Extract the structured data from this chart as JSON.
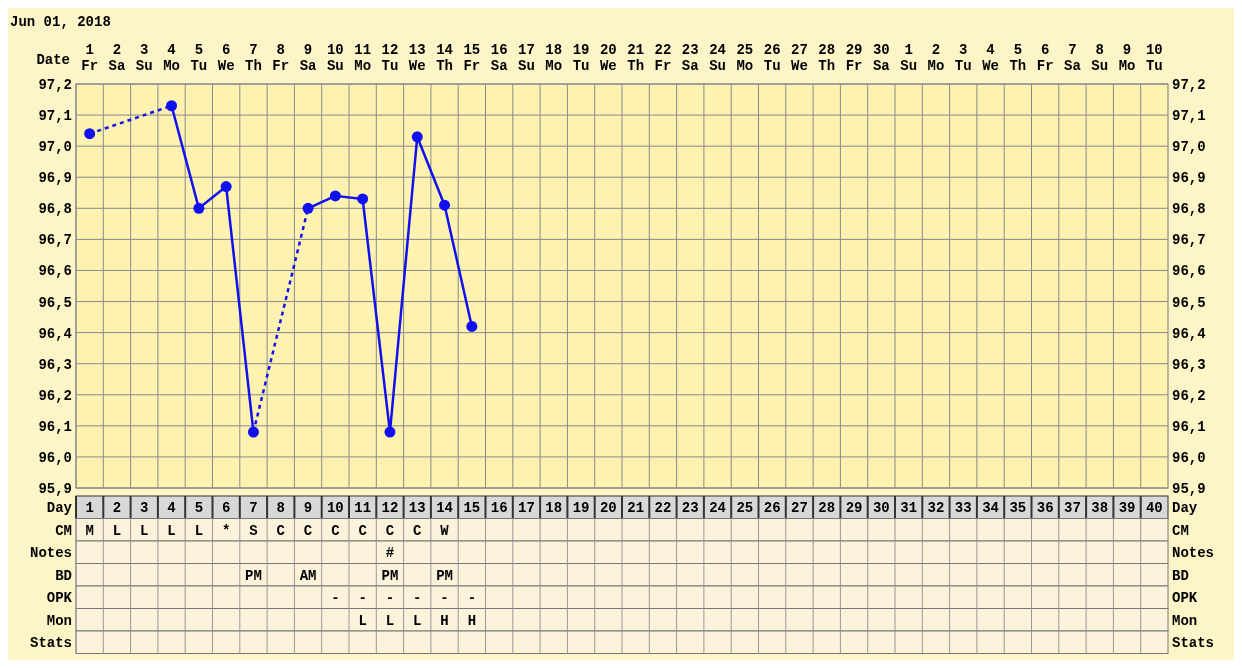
{
  "chart_data": {
    "type": "line",
    "title": "Jun 01, 2018",
    "xlabel": "Date",
    "categories": [
      "1\nFr",
      "2\nSa",
      "3\nSu",
      "4\nMo",
      "5\nTu",
      "6\nWe",
      "7\nTh",
      "8\nFr",
      "9\nSa",
      "10\nSu",
      "11\nMo",
      "12\nTu",
      "13\nWe",
      "14\nTh",
      "15\nFr",
      "16\nSa",
      "17\nSu",
      "18\nMo",
      "19\nTu",
      "20\nWe",
      "21\nTh",
      "22\nFr",
      "23\nSa",
      "24\nSu",
      "25\nMo",
      "26\nTu",
      "27\nWe",
      "28\nTh",
      "29\nFr",
      "30\nSa",
      "1\nSu",
      "2\nMo",
      "3\nTu",
      "4\nWe",
      "5\nTh",
      "6\nFr",
      "7\nSa",
      "8\nSu",
      "9\nMo",
      "10\nTu"
    ],
    "series": [
      {
        "color": "#1010f0",
        "values": [
          97.04,
          null,
          null,
          97.13,
          96.8,
          96.87,
          96.08,
          null,
          96.8,
          96.84,
          96.83,
          96.08,
          97.03,
          96.81,
          96.42,
          null,
          null,
          null,
          null,
          null,
          null,
          null,
          null,
          null,
          null,
          null,
          null,
          null,
          null,
          null,
          null,
          null,
          null,
          null,
          null,
          null,
          null,
          null,
          null,
          null
        ]
      }
    ],
    "ylim": [
      95.9,
      97.2
    ],
    "yticks": [
      {
        "value": 95.9,
        "label": "95,9"
      },
      {
        "value": 96.0,
        "label": "96,0"
      },
      {
        "value": 96.1,
        "label": "96,1"
      },
      {
        "value": 96.2,
        "label": "96,2"
      },
      {
        "value": 96.3,
        "label": "96,3"
      },
      {
        "value": 96.4,
        "label": "96,4"
      },
      {
        "value": 96.5,
        "label": "96,5"
      },
      {
        "value": 96.6,
        "label": "96,6"
      },
      {
        "value": 96.7,
        "label": "96,7"
      },
      {
        "value": 96.8,
        "label": "96,8"
      },
      {
        "value": 96.9,
        "label": "96,9"
      },
      {
        "value": 97.0,
        "label": "97,0"
      },
      {
        "value": 97.1,
        "label": "97,1"
      },
      {
        "value": 97.2,
        "label": "97,2"
      }
    ],
    "y2lim": [
      95.9,
      97.2
    ],
    "y2ticks": [
      {
        "value": 95.9,
        "label": "95,9"
      },
      {
        "value": 96.0,
        "label": "96,0"
      },
      {
        "value": 96.1,
        "label": "96,1"
      },
      {
        "value": 96.2,
        "label": "96,2"
      },
      {
        "value": 96.3,
        "label": "96,3"
      },
      {
        "value": 96.4,
        "label": "96,4"
      },
      {
        "value": 96.5,
        "label": "96,5"
      },
      {
        "value": 96.6,
        "label": "96,6"
      },
      {
        "value": 96.7,
        "label": "96,7"
      },
      {
        "value": 96.8,
        "label": "96,8"
      },
      {
        "value": 96.9,
        "label": "96,9"
      },
      {
        "value": 97.0,
        "label": "97,0"
      },
      {
        "value": 97.1,
        "label": "97,1"
      },
      {
        "value": 97.2,
        "label": "97,2"
      }
    ],
    "grid": true,
    "marker": "circle",
    "line_style": "solid",
    "x2label": "Day",
    "x2lim": [
      0.5,
      40.5
    ],
    "x2ticks": [
      1,
      2,
      3,
      4,
      5,
      6,
      7,
      8,
      9,
      10,
      11,
      12,
      13,
      14,
      15,
      16,
      17,
      18,
      19,
      20,
      21,
      22,
      23,
      24,
      25,
      26,
      27,
      28,
      29,
      30,
      31,
      32,
      33,
      34,
      35,
      36,
      37,
      38,
      39,
      40
    ],
    "annotations": [
      "CM",
      "M",
      "L",
      "L",
      "L",
      "L",
      "*",
      "S",
      "C",
      "C",
      "C",
      "C",
      "C",
      "C",
      "W",
      null,
      null,
      null,
      null,
      null,
      null,
      null,
      null,
      null,
      null,
      null,
      null,
      null,
      null,
      null,
      null,
      null,
      null,
      null,
      null,
      null,
      null,
      null,
      null,
      null,
      null,
      "Notes",
      null,
      null,
      null,
      null,
      null,
      null,
      null,
      null,
      null,
      null,
      null,
      "#",
      null,
      null,
      null,
      null,
      null,
      null,
      null,
      null,
      null,
      null,
      null,
      null,
      null,
      null,
      null,
      null,
      null,
      null,
      null,
      null,
      null,
      null,
      null,
      null,
      null,
      null,
      null,
      null,
      "BD",
      null,
      null,
      null,
      null,
      null,
      null,
      "PM",
      null,
      "AM",
      null,
      null,
      "PM",
      null,
      "PM",
      null,
      null,
      null,
      null,
      null,
      null,
      null,
      null,
      null,
      null,
      null,
      null,
      null,
      null,
      null,
      null,
      null,
      null,
      null,
      null,
      null,
      null,
      null,
      null,
      null,
      null,
      "OPK",
      null,
      null,
      null,
      null,
      null,
      null,
      null,
      null,
      null,
      "-",
      "-",
      "-",
      "-",
      "-",
      "-",
      null,
      null,
      null,
      null,
      null,
      null,
      null,
      null,
      null,
      null,
      null,
      null,
      null,
      null,
      null,
      null,
      null,
      null,
      null,
      null,
      null,
      null,
      null,
      null,
      null,
      "Mon",
      null,
      null,
      null,
      null,
      null,
      null,
      null,
      null,
      null,
      null,
      "L",
      "L",
      "L",
      "H",
      "H",
      null,
      null,
      null,
      null,
      null,
      null,
      null,
      null,
      null,
      null,
      null,
      null,
      null,
      null,
      null,
      null,
      null,
      null,
      null,
      null,
      null,
      null,
      null,
      null,
      null,
      "Stats",
      null,
      null,
      null,
      null,
      null,
      null,
      null,
      null,
      null,
      null,
      null,
      null,
      null,
      null,
      null,
      null,
      null,
      null,
      null,
      null,
      null,
      null,
      null,
      null,
      null,
      null,
      null,
      null,
      null,
      null,
      null,
      null,
      null,
      null,
      null,
      null,
      null,
      null,
      null,
      null
    ]
  }
}
